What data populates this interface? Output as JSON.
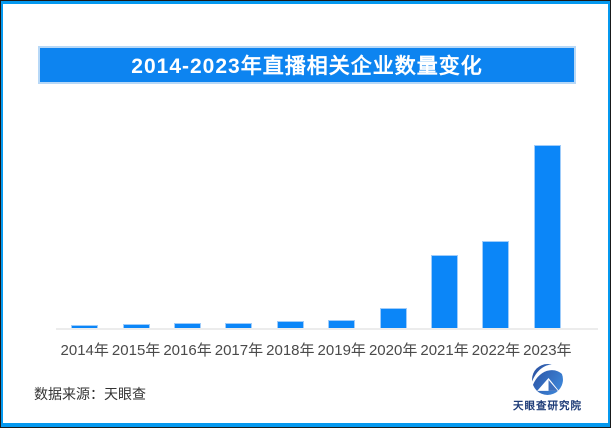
{
  "banner": {
    "title": "2014-2023年直播相关企业数量变化"
  },
  "chart_data": {
    "type": "bar",
    "title": "2014-2023年直播相关企业数量变化",
    "categories": [
      "2014年",
      "2015年",
      "2016年",
      "2017年",
      "2018年",
      "2019年",
      "2020年",
      "2021年",
      "2022年",
      "2023年"
    ],
    "values": [
      3,
      4.5,
      5,
      5.5,
      7.5,
      8.5,
      20,
      73,
      87,
      183
    ],
    "values_relative_max100": [
      1.6,
      2.5,
      2.7,
      3.0,
      4.1,
      4.6,
      10.9,
      39.9,
      47.5,
      100
    ],
    "unit": "bar height in screenshot pixels (no y-axis, gridlines or value labels shown)",
    "xlabel": "",
    "ylabel": "",
    "ylim": [
      0,
      187
    ],
    "legend": "none",
    "grid": false
  },
  "footer": {
    "source_label": "数据来源：天眼查",
    "logo_text": "天眼查研究院"
  },
  "icons": {
    "logo_icon": "tianyancha-eye-logo-icon"
  },
  "colors": {
    "bar": "#0b86f8",
    "banner_bg": "#0d84f0",
    "frame": "#0599ef",
    "axis_line": "#ececec",
    "x_label_text": "#4a4a4a",
    "logo_text": "#1e3c78",
    "title_text": "#ffffff",
    "logo_gradient_start": "#2b4f9e",
    "logo_gradient_end": "#3c83d6"
  }
}
